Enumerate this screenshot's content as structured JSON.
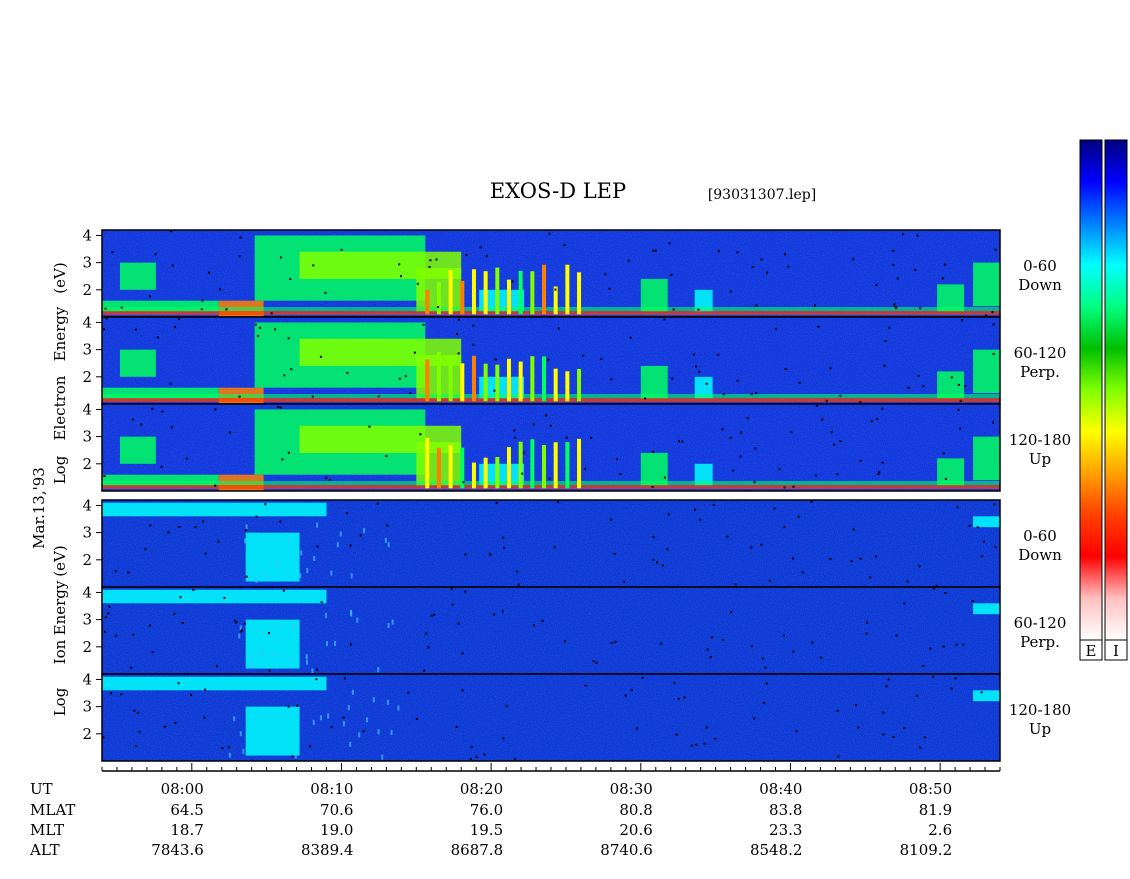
{
  "chart_data": {
    "type": "heatmap",
    "title": "EXOS-D LEP",
    "file": "[93031307.lep]",
    "date": "Mar.13,'93",
    "electron_ylabel": [
      "Log",
      "Electron",
      "Energy",
      "(eV)"
    ],
    "ion_ylabel": [
      "Log",
      "Ion",
      "Energy",
      "(eV)"
    ],
    "yticks": [
      "4",
      "3",
      "2"
    ],
    "y_range_log_eV": [
      1,
      4.2
    ],
    "x_range_ut": [
      "07:54",
      "08:54"
    ],
    "panels": [
      {
        "species": "electron",
        "pitch": "0-60",
        "dir": "Down"
      },
      {
        "species": "electron",
        "pitch": "60-120",
        "dir": "Perp."
      },
      {
        "species": "electron",
        "pitch": "120-180",
        "dir": "Up"
      },
      {
        "species": "ion",
        "pitch": "0-60",
        "dir": "Down"
      },
      {
        "species": "ion",
        "pitch": "60-120",
        "dir": "Perp."
      },
      {
        "species": "ion",
        "pitch": "120-180",
        "dir": "Up"
      }
    ],
    "orbit_table": {
      "row_labels": [
        "UT",
        "MLAT",
        "MLT",
        "ALT"
      ],
      "columns": [
        {
          "UT": "08:00",
          "MLAT": "64.5",
          "MLT": "18.7",
          "ALT": "7843.6"
        },
        {
          "UT": "08:10",
          "MLAT": "70.6",
          "MLT": "19.0",
          "ALT": "8389.4"
        },
        {
          "UT": "08:20",
          "MLAT": "76.0",
          "MLT": "19.5",
          "ALT": "8687.8"
        },
        {
          "UT": "08:30",
          "MLAT": "80.8",
          "MLT": "20.6",
          "ALT": "8740.6"
        },
        {
          "UT": "08:40",
          "MLAT": "83.8",
          "MLT": "23.3",
          "ALT": "8548.2"
        },
        {
          "UT": "08:50",
          "MLAT": "81.9",
          "MLT": "2.6",
          "ALT": "8109.2"
        }
      ]
    },
    "colorbars": [
      {
        "label": "E",
        "colors": [
          "#000080",
          "#0000ff",
          "#0080ff",
          "#00ffff",
          "#00ff80",
          "#00c000",
          "#80ff00",
          "#ffff00",
          "#ffa000",
          "#ff4000",
          "#ff0000",
          "#ffc0c0",
          "#ffffff"
        ]
      },
      {
        "label": "I",
        "colors": [
          "#000080",
          "#0000ff",
          "#0080ff",
          "#00ffff",
          "#00ff80",
          "#00c000",
          "#80ff00",
          "#ffff00",
          "#ffa000",
          "#ff4000",
          "#ff0000",
          "#ffc0c0",
          "#ffffff"
        ]
      }
    ],
    "electron_features": [
      {
        "t0": 0.02,
        "t1": 0.06,
        "e0": 2.0,
        "e1": 3.0,
        "level": 0.45
      },
      {
        "t0": 0.0,
        "t1": 0.13,
        "e0": 1.2,
        "e1": 1.6,
        "level": 0.55
      },
      {
        "t0": 0.13,
        "t1": 0.18,
        "e0": 1.0,
        "e1": 1.6,
        "level": 0.85
      },
      {
        "t0": 0.17,
        "t1": 0.36,
        "e0": 1.6,
        "e1": 4.0,
        "level": 0.5
      },
      {
        "t0": 0.22,
        "t1": 0.4,
        "e0": 2.4,
        "e1": 3.4,
        "level": 0.65
      },
      {
        "t0": 0.35,
        "t1": 0.4,
        "e0": 1.2,
        "e1": 2.8,
        "level": 0.6
      },
      {
        "t0": 0.42,
        "t1": 0.47,
        "e0": 1.2,
        "e1": 2.0,
        "level": 0.4
      },
      {
        "t0": 0.6,
        "t1": 0.63,
        "e0": 1.2,
        "e1": 2.4,
        "level": 0.45
      },
      {
        "t0": 0.66,
        "t1": 0.68,
        "e0": 1.2,
        "e1": 2.0,
        "level": 0.4
      },
      {
        "t0": 0.93,
        "t1": 0.96,
        "e0": 1.2,
        "e1": 2.2,
        "level": 0.45
      },
      {
        "t0": 0.97,
        "t1": 1.0,
        "e0": 1.4,
        "e1": 3.0,
        "level": 0.45
      }
    ],
    "ion_features": [
      {
        "t0": 0.0,
        "t1": 0.25,
        "e0": 3.6,
        "e1": 4.1,
        "level": 0.4
      },
      {
        "t0": 0.16,
        "t1": 0.22,
        "e0": 1.2,
        "e1": 3.0,
        "level": 0.35
      },
      {
        "t0": 0.97,
        "t1": 1.0,
        "e0": 3.2,
        "e1": 3.6,
        "level": 0.35
      }
    ]
  }
}
